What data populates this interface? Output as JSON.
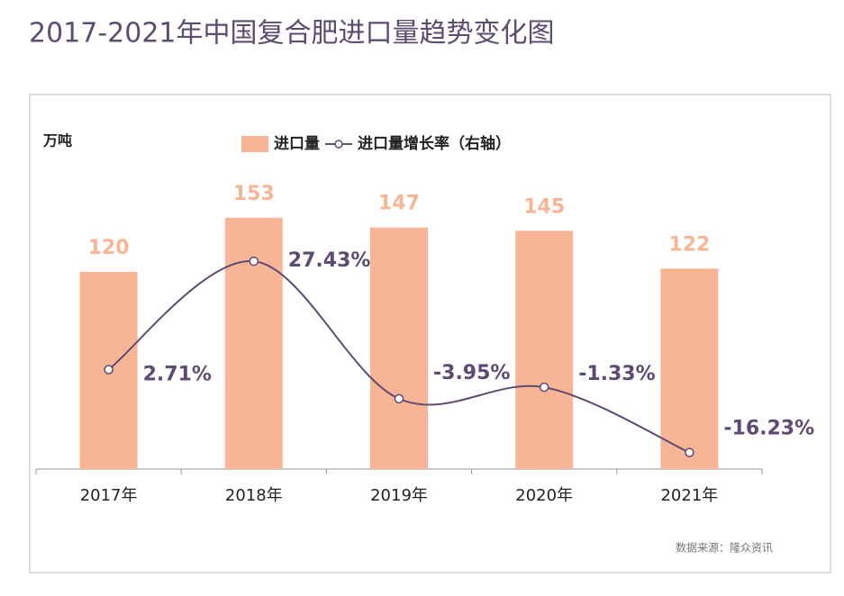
{
  "chart_data": {
    "type": "bar",
    "title": "2017-2021年中国复合肥进口量趋势变化图",
    "y_label": "万吨",
    "source": "数据来源：隆众资讯",
    "categories": [
      "2017年",
      "2018年",
      "2019年",
      "2020年",
      "2021年"
    ],
    "series": [
      {
        "name": "进口量",
        "type": "bar",
        "color": "#f7b595",
        "values": [
          120,
          153,
          147,
          145,
          122
        ]
      },
      {
        "name": "进口量增长率（右轴）",
        "type": "line",
        "axis": "y2",
        "color": "#5e4b73",
        "values": [
          2.71,
          27.43,
          -3.95,
          -1.33,
          -16.23
        ],
        "value_labels": [
          "2.71%",
          "27.43%",
          "-3.95%",
          "-1.33%",
          "-16.23%"
        ]
      }
    ],
    "ylim": [
      0,
      200
    ],
    "y2lim": [
      -20,
      55
    ],
    "legend": "top"
  }
}
